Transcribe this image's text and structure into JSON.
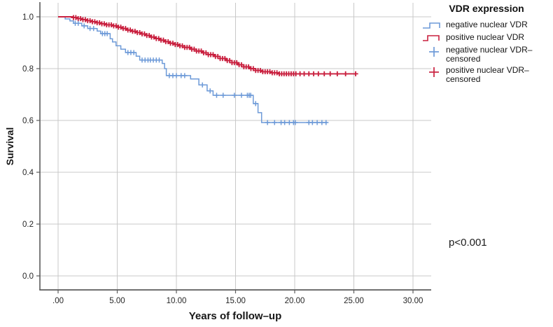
{
  "figure": {
    "p_value": "p<0.001"
  },
  "chart_data": {
    "type": "line",
    "subtype": "kaplan_meier_step",
    "title": "",
    "xlabel": "Years of follow–up",
    "ylabel": "Survival",
    "xlim": [
      0,
      31.5
    ],
    "ylim": [
      0.0,
      1.0
    ],
    "xticks": [
      0,
      5,
      10,
      15,
      20,
      25,
      30
    ],
    "xtick_labels": [
      ".00",
      "5.00",
      "10.00",
      "15.00",
      "20.00",
      "25.00",
      "30.00"
    ],
    "yticks": [
      0.0,
      0.2,
      0.4,
      0.6,
      0.8,
      1.0
    ],
    "ytick_labels": [
      "0.0",
      "0.2",
      "0.4",
      "0.6",
      "0.8",
      "1.0"
    ],
    "grid": true,
    "legend_position": "right-top",
    "colors": {
      "grid": "#c8c8c8",
      "axis": "#5c5c5c",
      "tick_text": "#262626"
    },
    "series": [
      {
        "name": "negative nuclear VDR",
        "color": "#6d9ad8",
        "line_width": 1.5,
        "steps": [
          [
            0,
            1.0
          ],
          [
            0.6,
            0.992
          ],
          [
            1.0,
            0.984
          ],
          [
            1.3,
            0.975
          ],
          [
            2.0,
            0.965
          ],
          [
            2.5,
            0.955
          ],
          [
            3.3,
            0.945
          ],
          [
            3.6,
            0.935
          ],
          [
            4.4,
            0.915
          ],
          [
            4.6,
            0.903
          ],
          [
            4.9,
            0.888
          ],
          [
            5.3,
            0.875
          ],
          [
            5.7,
            0.862
          ],
          [
            6.6,
            0.848
          ],
          [
            6.9,
            0.833
          ],
          [
            8.8,
            0.82
          ],
          [
            9.0,
            0.8
          ],
          [
            9.15,
            0.773
          ],
          [
            11.2,
            0.76
          ],
          [
            11.9,
            0.737
          ],
          [
            12.6,
            0.714
          ],
          [
            13.1,
            0.697
          ],
          [
            16.5,
            0.665
          ],
          [
            16.9,
            0.63
          ],
          [
            17.2,
            0.592
          ]
        ],
        "end_time": 22.75,
        "censored": [
          1.45,
          1.7,
          2.2,
          2.7,
          3.0,
          3.75,
          3.95,
          4.15,
          5.9,
          6.15,
          6.4,
          7.1,
          7.35,
          7.6,
          7.8,
          8.05,
          8.3,
          8.55,
          9.4,
          9.7,
          10.0,
          10.4,
          10.7,
          12.2,
          12.85,
          13.4,
          13.95,
          14.9,
          15.5,
          16.0,
          16.15,
          16.28,
          16.7,
          17.7,
          18.3,
          18.85,
          19.15,
          19.55,
          19.9,
          20.05,
          21.2,
          21.5,
          21.9,
          22.3,
          22.65
        ]
      },
      {
        "name": "positive nuclear VDR",
        "color": "#c9203f",
        "line_width": 1.9,
        "steps": [
          [
            0,
            1.0
          ],
          [
            1.2,
            0.997
          ],
          [
            1.6,
            0.993
          ],
          [
            2.0,
            0.989
          ],
          [
            2.4,
            0.985
          ],
          [
            2.9,
            0.981
          ],
          [
            3.3,
            0.977
          ],
          [
            3.7,
            0.973
          ],
          [
            4.1,
            0.969
          ],
          [
            4.6,
            0.965
          ],
          [
            5.0,
            0.96
          ],
          [
            5.4,
            0.955
          ],
          [
            5.8,
            0.949
          ],
          [
            6.2,
            0.944
          ],
          [
            6.6,
            0.939
          ],
          [
            7.0,
            0.934
          ],
          [
            7.4,
            0.928
          ],
          [
            7.8,
            0.922
          ],
          [
            8.2,
            0.916
          ],
          [
            8.6,
            0.91
          ],
          [
            9.0,
            0.904
          ],
          [
            9.4,
            0.898
          ],
          [
            9.8,
            0.893
          ],
          [
            10.2,
            0.888
          ],
          [
            10.7,
            0.882
          ],
          [
            11.2,
            0.875
          ],
          [
            11.7,
            0.868
          ],
          [
            12.2,
            0.861
          ],
          [
            12.7,
            0.854
          ],
          [
            13.2,
            0.847
          ],
          [
            13.7,
            0.839
          ],
          [
            14.2,
            0.831
          ],
          [
            14.7,
            0.823
          ],
          [
            15.2,
            0.815
          ],
          [
            15.7,
            0.807
          ],
          [
            16.2,
            0.8
          ],
          [
            16.7,
            0.793
          ],
          [
            17.3,
            0.788
          ],
          [
            18.0,
            0.784
          ],
          [
            18.7,
            0.78
          ]
        ],
        "end_time": 25.15,
        "censored_dense": {
          "from": 1.3,
          "to": 19.9,
          "step": 0.2
        },
        "censored": [
          20.1,
          20.45,
          20.8,
          21.2,
          21.6,
          22.0,
          22.5,
          23.0,
          23.6,
          24.3,
          25.15
        ]
      }
    ]
  },
  "legend": {
    "title": "VDR expression",
    "entries": [
      {
        "label": "negative nuclear VDR",
        "marker": "step-line",
        "series": 0
      },
      {
        "label": "positive nuclear VDR",
        "marker": "step-line",
        "series": 1
      },
      {
        "label": "negative nuclear VDR–censored",
        "marker": "plus",
        "series": 0
      },
      {
        "label": "positive nuclear VDR–censored",
        "marker": "plus",
        "series": 1
      }
    ]
  }
}
